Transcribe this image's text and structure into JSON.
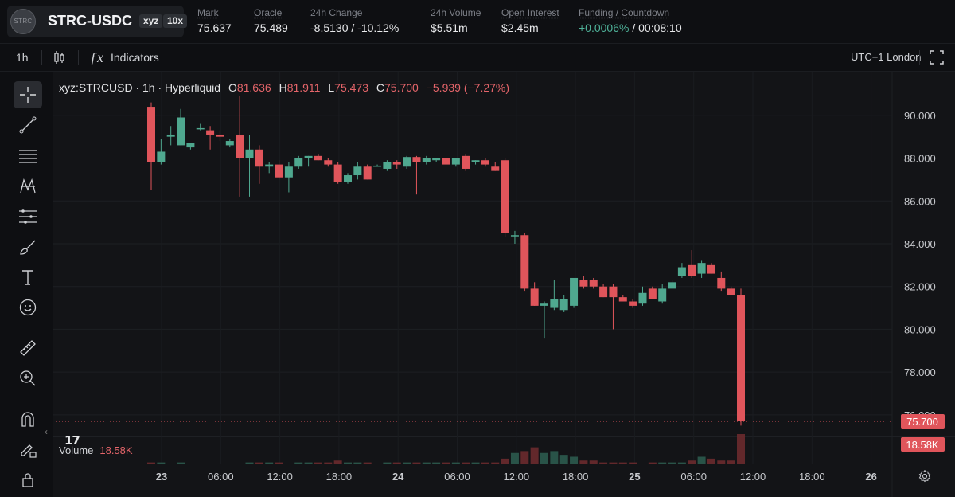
{
  "header": {
    "logo_text": "STRC",
    "pair": "STRC-USDC",
    "tag_dex": "xyz",
    "tag_leverage": "10x",
    "stats": {
      "mark": {
        "label": "Mark",
        "value": "75.637"
      },
      "oracle": {
        "label": "Oracle",
        "value": "75.489"
      },
      "change": {
        "label": "24h Change",
        "value": "-8.5130 / -10.12%"
      },
      "volume": {
        "label": "24h Volume",
        "value": "$5.51m"
      },
      "open_interest": {
        "label": "Open Interest",
        "value": "$2.45m"
      },
      "funding": {
        "label": "Funding / Countdown",
        "rate": "+0.0006%",
        "countdown": "/ 00:08:10"
      }
    }
  },
  "toolbar": {
    "interval": "1h",
    "indicators_label": "Indicators",
    "timezone": "UTC+1 London"
  },
  "tools": [
    "crosshair-icon",
    "trend-line-icon",
    "fib-retracement-icon",
    "pattern-icon",
    "forecast-icon",
    "brush-icon",
    "text-icon",
    "emoji-icon",
    "ruler-icon",
    "zoom-in-icon",
    "magnet-icon",
    "lock-drawings-icon",
    "lock-icon"
  ],
  "chart_data": {
    "type": "candlestick",
    "title": "xyz:STRCUSD · 1h · Hyperliquid",
    "ohlc_legend": {
      "o_label": "O",
      "o": "81.636",
      "h_label": "H",
      "h": "81.911",
      "l_label": "L",
      "l": "75.473",
      "c_label": "C",
      "c": "75.700",
      "change": "−5.939 (−7.27%)"
    },
    "y_ticks": [
      "90.000",
      "88.000",
      "86.000",
      "84.000",
      "82.000",
      "80.000",
      "78.000",
      "76.000"
    ],
    "ylim": [
      75.4,
      90.7
    ],
    "x_ticks": [
      "23",
      "06:00",
      "12:00",
      "18:00",
      "24",
      "06:00",
      "12:00",
      "18:00",
      "25",
      "06:00",
      "12:00",
      "18:00",
      "26"
    ],
    "last_price_tag": "75.700",
    "volume_tag": "18.58K",
    "volume_label": "Volume",
    "volume_value": "18.58K",
    "candles": [
      [
        90.4,
        90.6,
        86.5,
        87.8
      ],
      [
        87.8,
        88.9,
        87.7,
        88.3
      ],
      [
        89.0,
        89.5,
        88.6,
        89.1
      ],
      [
        88.6,
        90.3,
        88.6,
        89.9
      ],
      [
        88.5,
        88.7,
        88.4,
        88.7
      ],
      [
        89.4,
        89.6,
        89.3,
        89.4
      ],
      [
        89.3,
        89.5,
        88.4,
        89.1
      ],
      [
        89.1,
        89.3,
        88.8,
        89.0
      ],
      [
        88.6,
        88.9,
        88.5,
        88.8
      ],
      [
        89.1,
        90.9,
        86.2,
        88.0
      ],
      [
        88.0,
        89.1,
        86.2,
        88.4
      ],
      [
        88.4,
        88.6,
        86.8,
        87.6
      ],
      [
        87.6,
        87.8,
        87.3,
        87.7
      ],
      [
        87.7,
        87.9,
        87.0,
        87.1
      ],
      [
        87.1,
        87.8,
        86.4,
        87.6
      ],
      [
        87.6,
        88.1,
        87.5,
        88.0
      ],
      [
        88.0,
        88.1,
        87.6,
        88.1
      ],
      [
        88.1,
        88.2,
        87.9,
        87.9
      ],
      [
        87.9,
        88.0,
        87.6,
        87.7
      ],
      [
        87.7,
        87.8,
        86.8,
        86.9
      ],
      [
        86.9,
        87.3,
        86.8,
        87.2
      ],
      [
        87.2,
        87.8,
        87.0,
        87.6
      ],
      [
        87.6,
        87.7,
        87.0,
        87.0
      ],
      [
        87.6,
        87.7,
        87.6,
        87.65
      ],
      [
        87.5,
        87.9,
        87.4,
        87.8
      ],
      [
        87.8,
        87.9,
        87.5,
        87.7
      ],
      [
        87.6,
        88.1,
        87.5,
        88.05
      ],
      [
        88.05,
        88.1,
        86.3,
        87.8
      ],
      [
        87.8,
        88.1,
        87.7,
        88.0
      ],
      [
        87.9,
        88.0,
        87.8,
        88.0
      ],
      [
        88.0,
        88.1,
        87.8,
        87.7
      ],
      [
        87.7,
        88.0,
        87.6,
        88.0
      ],
      [
        88.1,
        88.2,
        87.4,
        87.5
      ],
      [
        87.8,
        87.9,
        87.7,
        87.9
      ],
      [
        87.9,
        88.0,
        87.6,
        87.7
      ],
      [
        87.6,
        87.8,
        87.4,
        87.4
      ],
      [
        87.9,
        88.0,
        84.3,
        84.5
      ],
      [
        84.4,
        84.6,
        84.0,
        84.4
      ],
      [
        84.4,
        84.5,
        81.8,
        81.9
      ],
      [
        81.9,
        82.2,
        81.1,
        81.1
      ],
      [
        81.1,
        81.3,
        79.6,
        81.2
      ],
      [
        81.0,
        82.3,
        80.9,
        81.4
      ],
      [
        80.9,
        81.6,
        80.8,
        81.4
      ],
      [
        81.1,
        82.3,
        81.0,
        82.4
      ],
      [
        82.3,
        82.5,
        81.9,
        82.0
      ],
      [
        82.3,
        82.4,
        81.9,
        82.0
      ],
      [
        82.0,
        82.1,
        81.5,
        81.5
      ],
      [
        82.0,
        82.1,
        80.0,
        81.5
      ],
      [
        81.5,
        81.6,
        81.3,
        81.3
      ],
      [
        81.3,
        81.4,
        81.0,
        81.1
      ],
      [
        81.2,
        82.0,
        81.1,
        81.7
      ],
      [
        81.9,
        82.0,
        81.4,
        81.4
      ],
      [
        81.3,
        82.1,
        81.2,
        81.9
      ],
      [
        81.9,
        82.3,
        81.9,
        82.2
      ],
      [
        82.5,
        83.1,
        82.4,
        82.9
      ],
      [
        83.0,
        83.7,
        82.4,
        82.5
      ],
      [
        82.6,
        83.2,
        82.4,
        83.1
      ],
      [
        83.0,
        83.1,
        82.6,
        82.6
      ],
      [
        82.4,
        82.7,
        81.8,
        81.9
      ],
      [
        81.9,
        82.0,
        81.7,
        81.6
      ],
      [
        81.6,
        81.9,
        75.5,
        75.7
      ]
    ],
    "volumes": [
      1,
      1,
      0,
      1,
      0,
      0,
      0,
      0,
      0,
      0,
      1,
      1,
      1,
      1,
      0,
      1,
      1,
      1,
      1,
      2,
      1,
      1,
      1,
      0,
      1,
      1,
      1,
      1,
      1,
      1,
      1,
      1,
      1,
      1,
      1,
      1,
      3,
      6,
      7,
      9,
      6,
      7,
      5,
      4,
      2,
      2,
      1,
      1,
      1,
      1,
      0,
      1,
      1,
      1,
      1,
      2,
      4,
      3,
      2,
      2,
      16
    ]
  }
}
